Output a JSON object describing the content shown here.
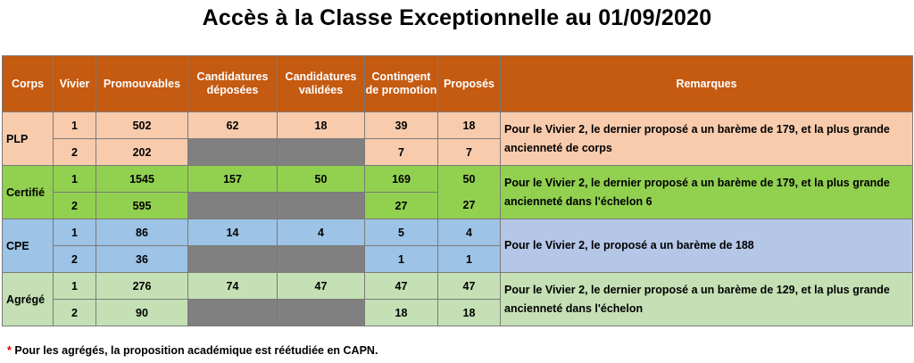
{
  "title": "Accès à la Classe Exceptionnelle au 01/09/2020",
  "headers": {
    "corps": "Corps",
    "vivier": "Vivier",
    "promouvables": "Promouvables",
    "candidatures_deposees": "Candidatures déposées",
    "candidatures_validees": "Candidatures validées",
    "contingent": "Contingent de promotion",
    "proposes": "Proposés",
    "remarques": "Remarques"
  },
  "colors": {
    "header": "#c55a11",
    "plp": "#f8cbad",
    "certifie": "#92d050",
    "cpe": "#9dc3e6",
    "cpe_remark": "#b4c7e7",
    "agrege": "#c5e0b4",
    "grey": "#808080"
  },
  "groups": [
    {
      "corps": "PLP",
      "remark": "Pour le Vivier 2, le dernier proposé a un barème de 179, et la plus grande ancienneté de corps",
      "rows": [
        {
          "vivier": "1",
          "promouvables": "502",
          "deposees": "62",
          "validees": "18",
          "contingent": "39",
          "proposes": "18"
        },
        {
          "vivier": "2",
          "promouvables": "202",
          "deposees": "",
          "validees": "",
          "contingent": "7",
          "proposes": "7"
        }
      ]
    },
    {
      "corps": "Certifié",
      "remark": "Pour le Vivier 2, le dernier proposé a un barème de 179, et la plus grande ancienneté dans l'échelon 6",
      "rows": [
        {
          "vivier": "1",
          "promouvables": "1545",
          "deposees": "157",
          "validees": "50",
          "contingent": "169",
          "proposes": "50"
        },
        {
          "vivier": "2",
          "promouvables": "595",
          "deposees": "",
          "validees": "",
          "contingent": "27",
          "proposes": "27"
        }
      ]
    },
    {
      "corps": "CPE",
      "remark": "Pour le Vivier 2, le proposé a un barème de 188",
      "rows": [
        {
          "vivier": "1",
          "promouvables": "86",
          "deposees": "14",
          "validees": "4",
          "contingent": "5",
          "proposes": "4"
        },
        {
          "vivier": "2",
          "promouvables": "36",
          "deposees": "",
          "validees": "",
          "contingent": "1",
          "proposes": "1"
        }
      ]
    },
    {
      "corps": "Agrégé",
      "remark": "Pour le Vivier 2, le dernier proposé a un barème de 129, et la plus grande ancienneté dans l'échelon",
      "rows": [
        {
          "vivier": "1",
          "promouvables": "276",
          "deposees": "74",
          "validees": "47",
          "contingent": "47",
          "proposes": "47"
        },
        {
          "vivier": "2",
          "promouvables": "90",
          "deposees": "",
          "validees": "",
          "contingent": "18",
          "proposes": "18"
        }
      ]
    }
  ],
  "footnote": {
    "star": "*",
    "text": "Pour les agrégés, la proposition académique est réétudiée en CAPN."
  }
}
